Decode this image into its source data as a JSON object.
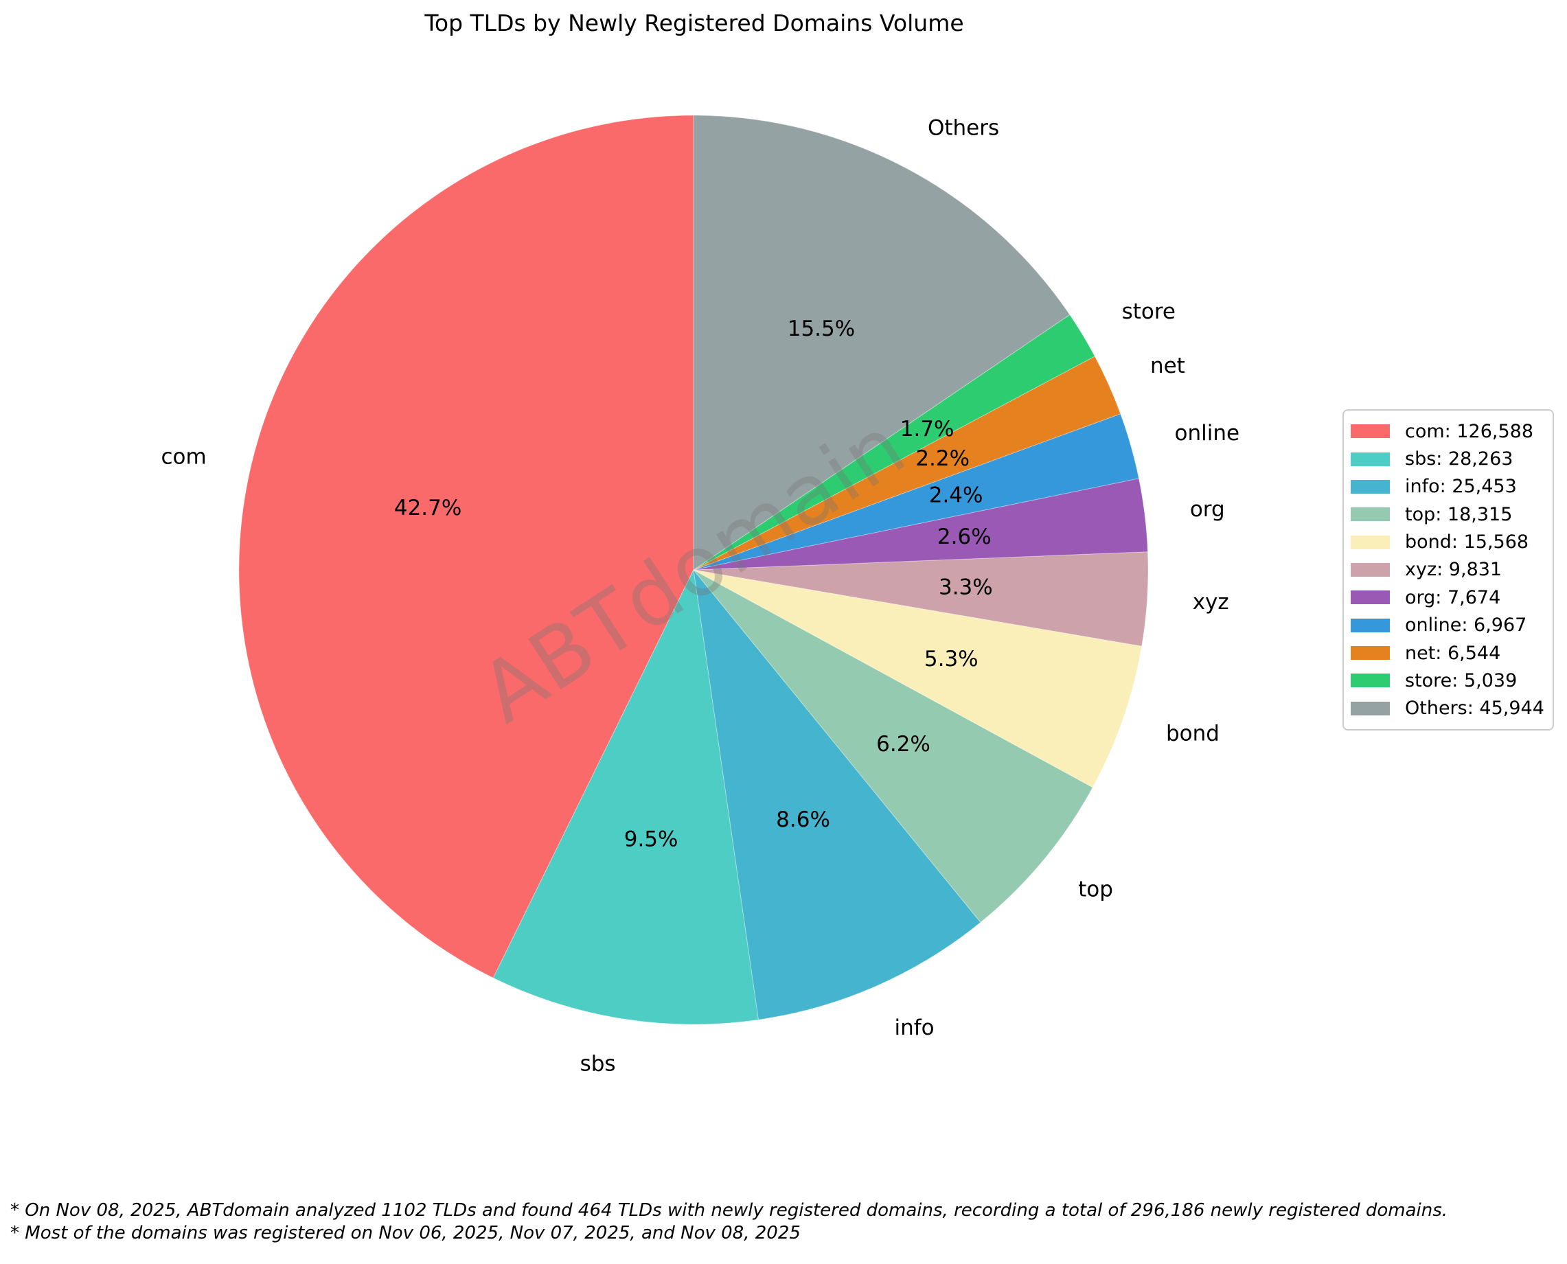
{
  "title": "Top TLDs by Newly Registered Domains Volume",
  "watermark_text": "ABTdomain",
  "chart_data": {
    "type": "pie",
    "title": "Top TLDs by Newly Registered Domains Volume",
    "start_angle": 90,
    "direction": "counterclockwise",
    "total": 296186,
    "legend_position": "center right",
    "slices": [
      {
        "label": "com",
        "value": 126588,
        "pct_label": "42.7%",
        "legend_label": "com: 126,588",
        "color": "#FA6A6A"
      },
      {
        "label": "sbs",
        "value": 28263,
        "pct_label": "9.5%",
        "legend_label": "sbs: 28,263",
        "color": "#4ECDC4"
      },
      {
        "label": "info",
        "value": 25453,
        "pct_label": "8.6%",
        "legend_label": "info: 25,453",
        "color": "#45B4CE"
      },
      {
        "label": "top",
        "value": 18315,
        "pct_label": "6.2%",
        "legend_label": "top: 18,315",
        "color": "#94CBB0"
      },
      {
        "label": "bond",
        "value": 15568,
        "pct_label": "5.3%",
        "legend_label": "bond: 15,568",
        "color": "#FBEFB9"
      },
      {
        "label": "xyz",
        "value": 9831,
        "pct_label": "3.3%",
        "legend_label": "xyz: 9,831",
        "color": "#CDA2AA"
      },
      {
        "label": "org",
        "value": 7674,
        "pct_label": "2.6%",
        "legend_label": "org: 7,674",
        "color": "#9A59B5"
      },
      {
        "label": "online",
        "value": 6967,
        "pct_label": "2.4%",
        "legend_label": "online: 6,967",
        "color": "#3498DB"
      },
      {
        "label": "net",
        "value": 6544,
        "pct_label": "2.2%",
        "legend_label": "net: 6,544",
        "color": "#E6811F"
      },
      {
        "label": "store",
        "value": 5039,
        "pct_label": "1.7%",
        "legend_label": "store: 5,039",
        "color": "#2ECC71"
      },
      {
        "label": "Others",
        "value": 45944,
        "pct_label": "15.5%",
        "legend_label": "Others: 45,944",
        "color": "#95A2A3"
      }
    ]
  },
  "footnotes": [
    "* On Nov 08, 2025, ABTdomain analyzed 1102 TLDs and found 464 TLDs with newly registered domains, recording a total of 296,186 newly registered domains.",
    "* Most of the domains was registered on Nov 06, 2025, Nov 07, 2025, and Nov 08, 2025"
  ]
}
